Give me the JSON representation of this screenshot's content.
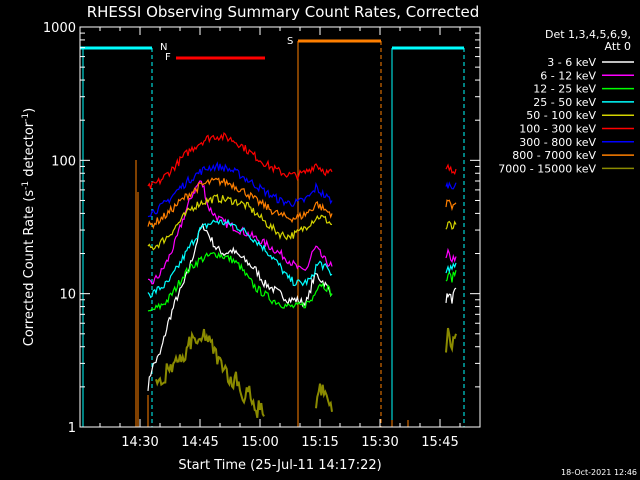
{
  "chart_data": {
    "type": "line",
    "title": "RHESSI Observing Summary Count Rates, Corrected",
    "xlabel": "Start Time (25-Jul-11 14:17:22)",
    "ylabel": "Corrected Count Rate (s⁻¹ detector⁻¹)",
    "ylabel_base": "Corrected Count Rate (s",
    "ylabel_sup1": "-1",
    "ylabel_mid": " detector",
    "ylabel_sup2": "-1",
    "ylabel_end": ")",
    "y_scale": "log",
    "ylim": [
      1,
      1000
    ],
    "xlim_minutes": [
      0,
      100
    ],
    "x_ticks": [
      {
        "label": "14:30",
        "minute": 15
      },
      {
        "label": "14:45",
        "minute": 30
      },
      {
        "label": "15:00",
        "minute": 45
      },
      {
        "label": "15:15",
        "minute": 60
      },
      {
        "label": "15:30",
        "minute": 75
      },
      {
        "label": "15:45",
        "minute": 90
      }
    ],
    "y_ticks": [
      {
        "label": "1",
        "value": 1
      },
      {
        "label": "10",
        "value": 10
      },
      {
        "label": "100",
        "value": 100
      },
      {
        "label": "1000",
        "value": 1000
      }
    ],
    "legend_header": [
      "Det 1,3,4,5,6,9,",
      "Att 0"
    ],
    "legend_position": "right",
    "series": [
      {
        "name": "3 - 6 keV",
        "color": "#ffffff",
        "segments": [
          {
            "x": [
              17,
              18,
              20,
              22,
              24,
              26,
              28,
              30,
              31,
              33,
              34,
              36,
              38,
              40,
              42,
              44,
              46,
              48,
              50,
              52,
              54,
              56,
              57,
              58,
              59,
              60,
              61,
              62,
              63
            ],
            "y": [
              2.0,
              2.8,
              3.5,
              6.0,
              9.0,
              12,
              18,
              30,
              32,
              25,
              22,
              20,
              21,
              19,
              17,
              15,
              12,
              11,
              10,
              9,
              9,
              8.5,
              9,
              12,
              14,
              13,
              12,
              11,
              10
            ]
          },
          {
            "x": [
              91.5,
              92,
              93,
              94
            ],
            "y": [
              9,
              10,
              9,
              11
            ]
          }
        ]
      },
      {
        "name": "6 - 12 keV",
        "color": "#ff00ff",
        "segments": [
          {
            "x": [
              17,
              18,
              20,
              22,
              24,
              26,
              28,
              30,
              31,
              32,
              34,
              36,
              38,
              40,
              42,
              44,
              46,
              48,
              50,
              52,
              54,
              55,
              56,
              57,
              58,
              59,
              60,
              61,
              62,
              63
            ],
            "y": [
              12,
              12,
              14,
              18,
              25,
              38,
              55,
              70,
              62,
              45,
              38,
              34,
              32,
              30,
              28,
              26,
              24,
              22,
              20,
              18,
              16,
              15,
              15,
              16,
              20,
              22,
              20,
              18,
              17,
              16
            ]
          },
          {
            "x": [
              91.5,
              92,
              93,
              94
            ],
            "y": [
              18,
              20,
              18,
              19
            ]
          }
        ]
      },
      {
        "name": "12 - 25 keV",
        "color": "#00ff00",
        "segments": [
          {
            "x": [
              17,
              18,
              20,
              22,
              24,
              26,
              28,
              30,
              32,
              34,
              36,
              38,
              40,
              42,
              44,
              46,
              48,
              50,
              52,
              54,
              56,
              58,
              59,
              60,
              62,
              63
            ],
            "y": [
              7,
              7.5,
              8,
              9,
              11,
              14,
              16,
              18,
              19,
              20,
              19,
              18,
              16,
              13,
              11,
              10,
              9,
              8.5,
              8,
              8,
              8.2,
              9,
              11,
              12,
              11,
              10
            ]
          },
          {
            "x": [
              91.5,
              92,
              93,
              94
            ],
            "y": [
              12,
              14,
              13,
              15
            ]
          }
        ]
      },
      {
        "name": "25 - 50 keV",
        "color": "#00ffff",
        "segments": [
          {
            "x": [
              17,
              18,
              20,
              22,
              24,
              26,
              28,
              30,
              32,
              34,
              36,
              38,
              40,
              42,
              44,
              46,
              48,
              50,
              52,
              54,
              56,
              58,
              59,
              60,
              62,
              63
            ],
            "y": [
              10,
              10,
              11,
              12,
              15,
              19,
              24,
              30,
              33,
              35,
              34,
              33,
              31,
              28,
              25,
              22,
              19,
              16,
              13,
              12,
              12,
              13,
              16,
              17,
              15,
              14
            ]
          },
          {
            "x": [
              91.5,
              92,
              93,
              94
            ],
            "y": [
              14,
              16,
              15,
              17
            ]
          }
        ]
      },
      {
        "name": "50 - 100 keV",
        "color": "#d4d400",
        "segments": [
          {
            "x": [
              17,
              18,
              20,
              22,
              24,
              26,
              28,
              30,
              32,
              34,
              36,
              38,
              40,
              42,
              44,
              46,
              48,
              50,
              52,
              54,
              56,
              58,
              59,
              60,
              62,
              63
            ],
            "y": [
              22,
              22,
              24,
              27,
              32,
              38,
              44,
              48,
              50,
              52,
              51,
              50,
              48,
              45,
              40,
              35,
              31,
              28,
              27,
              28,
              31,
              35,
              37,
              38,
              35,
              33
            ]
          },
          {
            "x": [
              91.5,
              92,
              93,
              94
            ],
            "y": [
              30,
              34,
              31,
              33
            ]
          }
        ]
      },
      {
        "name": "100 - 300 keV",
        "color": "#ff0000",
        "segments": [
          {
            "x": [
              17,
              18,
              20,
              22,
              24,
              26,
              28,
              30,
              32,
              34,
              36,
              38,
              40,
              42,
              44,
              46,
              48,
              50,
              52,
              54,
              56,
              58,
              59,
              60,
              62,
              63
            ],
            "y": [
              62,
              64,
              70,
              80,
              92,
              108,
              122,
              136,
              147,
              152,
              150,
              143,
              132,
              118,
              106,
              96,
              88,
              82,
              78,
              77,
              80,
              88,
              94,
              88,
              80,
              82
            ]
          },
          {
            "x": [
              91.5,
              92,
              93,
              94
            ],
            "y": [
              84,
              88,
              82,
              86
            ]
          }
        ]
      },
      {
        "name": "300 - 800 keV",
        "color": "#0000ff",
        "segments": [
          {
            "x": [
              17,
              18,
              20,
              22,
              24,
              26,
              28,
              30,
              32,
              34,
              36,
              38,
              40,
              42,
              44,
              46,
              48,
              50,
              52,
              54,
              56,
              58,
              59,
              60,
              62,
              63
            ],
            "y": [
              40,
              41,
              44,
              50,
              58,
              66,
              74,
              82,
              88,
              90,
              88,
              84,
              78,
              71,
              65,
              59,
              54,
              50,
              48,
              48,
              50,
              56,
              63,
              58,
              52,
              50
            ]
          },
          {
            "x": [
              91.5,
              92,
              93,
              94
            ],
            "y": [
              62,
              66,
              64,
              68
            ]
          }
        ]
      },
      {
        "name": "800 - 7000 keV",
        "color": "#ff7f00",
        "segments": [
          {
            "x": [
              17,
              18,
              20,
              22,
              24,
              26,
              28,
              30,
              32,
              34,
              36,
              38,
              40,
              42,
              44,
              46,
              48,
              50,
              52,
              54,
              56,
              58,
              59,
              60,
              62,
              63
            ],
            "y": [
              32,
              33,
              36,
              40,
              46,
              52,
              58,
              64,
              68,
              70,
              69,
              66,
              61,
              56,
              50,
              46,
              42,
              39,
              37,
              37,
              39,
              43,
              48,
              45,
              41,
              40
            ]
          },
          {
            "x": [
              91.5,
              92,
              93,
              94
            ],
            "y": [
              45,
              50,
              46,
              48
            ]
          }
        ]
      },
      {
        "name": "7000 - 15000 keV",
        "color": "#8b8b00",
        "segments": [
          {
            "x": [
              19,
              20,
              21,
              22,
              23,
              24,
              25,
              26,
              27,
              28,
              29,
              30,
              31,
              32,
              33,
              34,
              35,
              36,
              37,
              38,
              39,
              40,
              41,
              42,
              43,
              44,
              45,
              46
            ],
            "y": [
              2.0,
              2.5,
              2.0,
              3.0,
              2.5,
              3.0,
              3.5,
              3.0,
              4.0,
              4.5,
              4.5,
              4.0,
              5.0,
              4.5,
              4.0,
              3.5,
              3.0,
              3.0,
              2.5,
              2.0,
              2.5,
              2.0,
              1.5,
              2.0,
              1.5,
              1.2,
              1.5,
              1.2
            ]
          },
          {
            "x": [
              59,
              60,
              61,
              62,
              63
            ],
            "y": [
              1.5,
              2.0,
              1.8,
              1.5,
              1.3
            ]
          },
          {
            "x": [
              91.5,
              92,
              93,
              94
            ],
            "y": [
              4,
              5,
              4,
              5
            ]
          }
        ]
      }
    ],
    "attenuator_markers": [
      {
        "label": "N",
        "color": "#00ffff"
      },
      {
        "label": "F",
        "color": "#ff0000"
      },
      {
        "label": "S",
        "color": "#ff7f00"
      }
    ],
    "timestamp": "18-Oct-2021 12:46"
  }
}
